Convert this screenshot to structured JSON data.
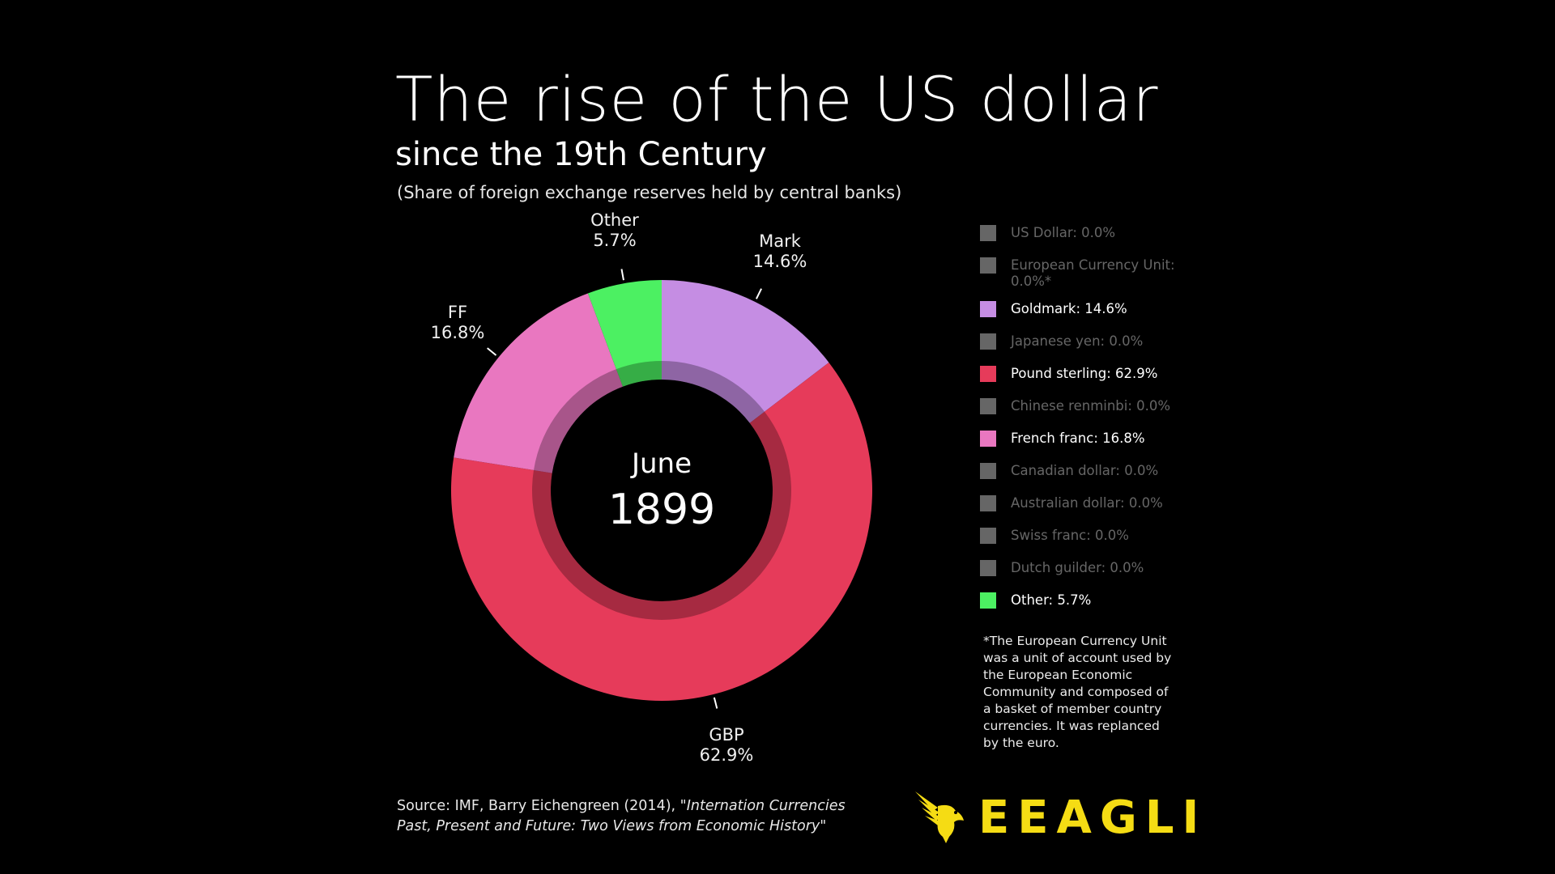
{
  "title": "The rise of the US dollar",
  "subtitle": "since the 19th Century",
  "subnote": "(Share of foreign exchange reserves held by central banks)",
  "center": {
    "month": "June",
    "year": "1899"
  },
  "colors": {
    "background": "#000000",
    "gbp": "#e63b5a",
    "mark": "#c58de3",
    "ff": "#e977c0",
    "other": "#4cf062",
    "inactive": "#666666",
    "brand": "#f5dc14"
  },
  "chart_data": {
    "type": "pie",
    "title": "The rise of the US dollar",
    "subtitle": "since the 19th Century",
    "period": "June 1899",
    "slices": [
      {
        "label": "Mark",
        "value": 14.6,
        "value_label": "14.6%",
        "color": "#c58de3"
      },
      {
        "label": "GBP",
        "value": 62.9,
        "value_label": "62.9%",
        "color": "#e63b5a"
      },
      {
        "label": "FF",
        "value": 16.8,
        "value_label": "16.8%",
        "color": "#e977c0"
      },
      {
        "label": "Other",
        "value": 5.7,
        "value_label": "5.7%",
        "color": "#4cf062"
      }
    ],
    "legend": [
      {
        "text": "US Dollar: 0.0%",
        "value": 0.0,
        "color": "#666666"
      },
      {
        "text": "European Currency Unit: 0.0%*",
        "value": 0.0,
        "color": "#666666"
      },
      {
        "text": "Goldmark: 14.6%",
        "value": 14.6,
        "color": "#c58de3"
      },
      {
        "text": "Japanese yen: 0.0%",
        "value": 0.0,
        "color": "#666666"
      },
      {
        "text": "Pound sterling: 62.9%",
        "value": 62.9,
        "color": "#e63b5a"
      },
      {
        "text": "Chinese renminbi: 0.0%",
        "value": 0.0,
        "color": "#666666"
      },
      {
        "text": "French franc: 16.8%",
        "value": 16.8,
        "color": "#e977c0"
      },
      {
        "text": "Canadian dollar: 0.0%",
        "value": 0.0,
        "color": "#666666"
      },
      {
        "text": "Australian dollar: 0.0%",
        "value": 0.0,
        "color": "#666666"
      },
      {
        "text": "Swiss franc: 0.0%",
        "value": 0.0,
        "color": "#666666"
      },
      {
        "text": "Dutch guilder: 0.0%",
        "value": 0.0,
        "color": "#666666"
      },
      {
        "text": "Other: 5.7%",
        "value": 5.7,
        "color": "#4cf062"
      }
    ],
    "legend_placement": "right"
  },
  "footnote": "*The European Currency Unit was a unit of account used by the European Economic Community and composed of a basket of member country currencies. It was replanced by the euro.",
  "source": {
    "prefix": "Source: IMF, Barry Eichengreen (2014), ",
    "work": "\"Internation Currencies Past, Present and Future: Two Views from Economic History\""
  },
  "brand": {
    "name": "EEAGLI",
    "logo_icon": "eagle-icon"
  }
}
